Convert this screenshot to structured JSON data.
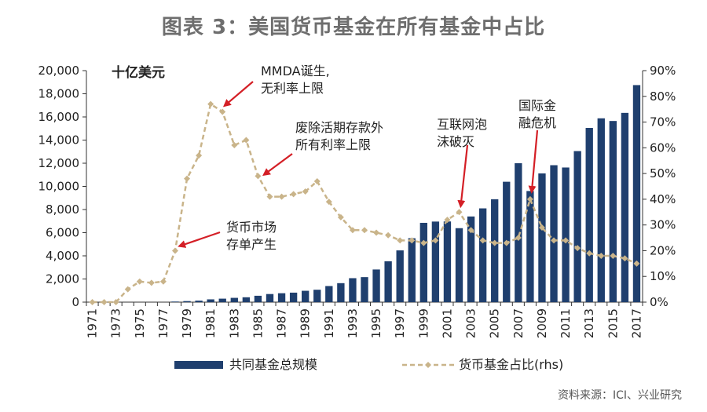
{
  "title": "图表 3：美国货币基金在所有基金中占比",
  "source": "资料来源：ICI、兴业研究",
  "chart_data": {
    "type": "bar+line",
    "unit_label": "十亿美元",
    "years": [
      1971,
      1972,
      1973,
      1974,
      1975,
      1976,
      1977,
      1978,
      1979,
      1980,
      1981,
      1982,
      1983,
      1984,
      1985,
      1986,
      1987,
      1988,
      1989,
      1990,
      1991,
      1992,
      1993,
      1994,
      1995,
      1996,
      1997,
      1998,
      1999,
      2000,
      2001,
      2002,
      2003,
      2004,
      2005,
      2006,
      2007,
      2008,
      2009,
      2010,
      2011,
      2012,
      2013,
      2014,
      2015,
      2016,
      2017
    ],
    "x_tick_labels": [
      "1971",
      "1973",
      "1975",
      "1977",
      "1979",
      "1981",
      "1983",
      "1985",
      "1987",
      "1989",
      "1991",
      "1993",
      "1995",
      "1997",
      "1999",
      "2001",
      "2003",
      "2005",
      "2007",
      "2009",
      "2011",
      "2013",
      "2015",
      "2017"
    ],
    "left_axis": {
      "ylim": [
        0,
        20000
      ],
      "ticks": [
        "0",
        "2,000",
        "4,000",
        "6,000",
        "8,000",
        "10,000",
        "12,000",
        "14,000",
        "16,000",
        "18,000",
        "20,000"
      ]
    },
    "right_axis": {
      "ylim": [
        0,
        90
      ],
      "ticks": [
        "0%",
        "10%",
        "20%",
        "30%",
        "40%",
        "50%",
        "60%",
        "70%",
        "80%",
        "90%"
      ]
    },
    "series": [
      {
        "name": "共同基金总规模",
        "axis": "left",
        "type": "bar",
        "color": "#1f3f6e",
        "values": [
          0,
          0,
          0,
          0,
          0,
          0,
          0,
          50,
          90,
          130,
          240,
          300,
          370,
          420,
          550,
          700,
          770,
          820,
          980,
          1070,
          1390,
          1640,
          2070,
          2160,
          2820,
          3530,
          4470,
          5520,
          6850,
          6960,
          6970,
          6390,
          7400,
          8100,
          8890,
          10400,
          12000,
          9600,
          11120,
          11830,
          11630,
          13050,
          15050,
          15880,
          15650,
          16350,
          18750
        ]
      },
      {
        "name": "货币基金占比(rhs)",
        "axis": "right",
        "type": "line",
        "color": "#c9b48a",
        "values": [
          0,
          0,
          0,
          5,
          8,
          7.5,
          8,
          20,
          48,
          57,
          77,
          74,
          61,
          63,
          49,
          41,
          41,
          42,
          43,
          47,
          39,
          33,
          28,
          28,
          27,
          26,
          24,
          24,
          23,
          24,
          32,
          35,
          28,
          24,
          23,
          23,
          25,
          40,
          29,
          24,
          24,
          21,
          19,
          18,
          18,
          17,
          15
        ]
      }
    ],
    "annotations": [
      {
        "year": 1978,
        "lines": [
          "货币市场",
          "存单产生"
        ]
      },
      {
        "year": 1982,
        "lines": [
          "MMDA诞生,",
          "无利率上限"
        ]
      },
      {
        "year": 1985,
        "lines": [
          "废除活期存款外",
          "所有利率上限"
        ]
      },
      {
        "year": 2002,
        "lines": [
          "互联网泡",
          "沫破灭"
        ]
      },
      {
        "year": 2008,
        "lines": [
          "国际金",
          "融危机"
        ]
      }
    ],
    "arrow_color": "#d41f26"
  }
}
